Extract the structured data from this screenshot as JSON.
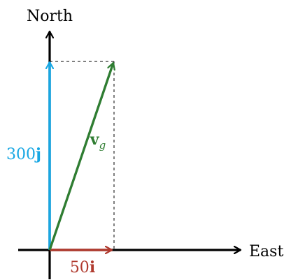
{
  "labels": {
    "north": "North",
    "east": "East",
    "vertical_vector": {
      "number": "300",
      "unit": "j"
    },
    "horizontal_vector": {
      "number": "50",
      "unit": "i"
    },
    "resultant_vector": {
      "name": "v",
      "subscript": "g"
    }
  },
  "vectors": {
    "vertical": {
      "x": 0,
      "y": 300,
      "color": "#18a7e3"
    },
    "horizontal": {
      "x": 50,
      "y": 0,
      "color": "#b03a2e"
    },
    "resultant": {
      "x": 50,
      "y": 300,
      "color": "#2f7d32"
    }
  },
  "axes": {
    "color": "#000000"
  },
  "guides": {
    "dashed": true,
    "color": "#000000"
  }
}
